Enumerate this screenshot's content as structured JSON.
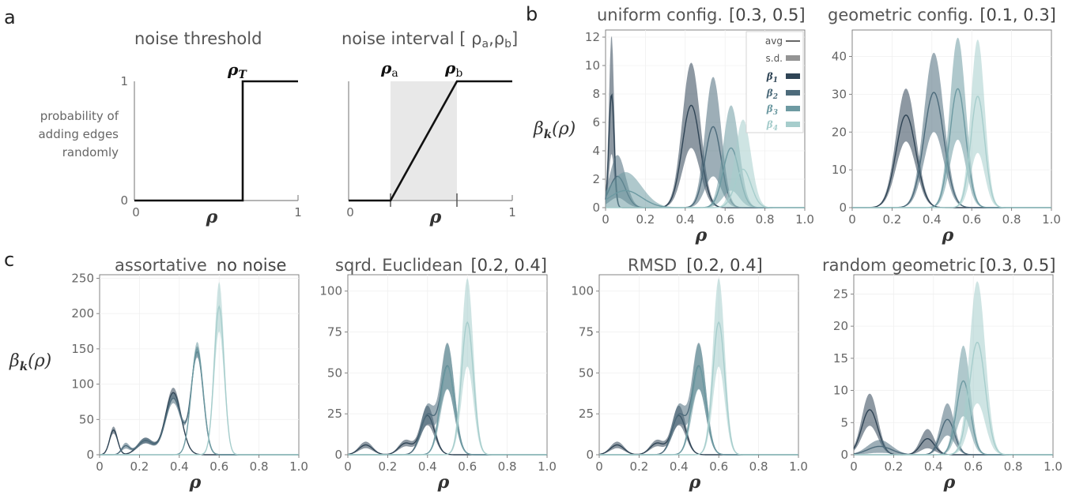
{
  "panel_labels": [
    "a",
    "b",
    "c"
  ],
  "panel_a": {
    "threshold": {
      "title": "noise threshold",
      "ylabel_lines": [
        "probability of",
        "adding edges",
        "randomly"
      ],
      "y_ticks": [
        "0",
        "1"
      ],
      "x_ticks": [
        "0",
        "1"
      ],
      "xlabel": "ρ",
      "marker_label": "ρ",
      "marker_sub": "T"
    },
    "interval": {
      "title": "noise interval [ ρ",
      "title_sub_a": "a",
      "title_mid": ",ρ",
      "title_sub_b": "b",
      "title_end": "]",
      "x_ticks": [
        "0",
        "1"
      ],
      "xlabel": "ρ",
      "label_a": "ρ",
      "label_a_sub": "a",
      "label_b": "ρ",
      "label_b_sub": "b"
    }
  },
  "colors": {
    "b1": "#2f4455",
    "b2": "#4d6b7b",
    "b3": "#6d9aa2",
    "b4": "#a6cdcc",
    "axis": "#888888",
    "shade": "#e6e6e6"
  },
  "legend": {
    "avg": "avg",
    "sd": "s.d.",
    "b1": "β",
    "b1_sub": "1",
    "b2": "β",
    "b2_sub": "2",
    "b3": "β",
    "b3_sub": "3",
    "b4": "β",
    "b4_sub": "4"
  },
  "ylabel_beta": "β",
  "ylabel_beta_sub": "k",
  "ylabel_beta_rest": "(ρ)",
  "chart_data": [
    {
      "id": "uniform",
      "type": "area",
      "title": "uniform config.",
      "title_extra": "[0.3, 0.5]",
      "xlabel": "ρ",
      "xlim": [
        0,
        1
      ],
      "ylim": [
        0,
        12.5
      ],
      "x_ticks": [
        "0",
        "0.2",
        "0.4",
        "0.6",
        "0.8",
        "1.0"
      ],
      "y_tick_values": [
        0,
        2,
        4,
        6,
        8,
        10,
        12
      ],
      "y_ticks": [
        "0",
        "2",
        "4",
        "6",
        "8",
        "10",
        "12"
      ],
      "series": [
        {
          "name": "β1",
          "components": [
            {
              "mu": 0.03,
              "sigma": 0.013,
              "amp": 8.0,
              "sd": 4.2
            },
            {
              "mu": 0.43,
              "sigma": 0.045,
              "amp": 7.2,
              "sd": 3.0
            }
          ]
        },
        {
          "name": "β2",
          "components": [
            {
              "mu": 0.06,
              "sigma": 0.04,
              "amp": 2.2,
              "sd": 1.5
            },
            {
              "mu": 0.54,
              "sigma": 0.04,
              "amp": 5.7,
              "sd": 3.5
            }
          ]
        },
        {
          "name": "β3",
          "components": [
            {
              "mu": 0.1,
              "sigma": 0.08,
              "amp": 1.2,
              "sd": 1.3
            },
            {
              "mu": 0.63,
              "sigma": 0.04,
              "amp": 4.2,
              "sd": 3.0
            }
          ]
        },
        {
          "name": "β4",
          "components": [
            {
              "mu": 0.69,
              "sigma": 0.04,
              "amp": 2.7,
              "sd": 3.5
            }
          ]
        }
      ]
    },
    {
      "id": "geometric",
      "type": "area",
      "title": "geometric config.",
      "title_extra": "[0.1, 0.3]",
      "xlabel": "ρ",
      "xlim": [
        0,
        1
      ],
      "ylim": [
        0,
        47
      ],
      "x_ticks": [
        "0",
        "0.2",
        "0.4",
        "0.6",
        "0.8",
        "1.0"
      ],
      "y_tick_values": [
        0,
        10,
        20,
        30,
        40
      ],
      "y_ticks": [
        "0",
        "10",
        "20",
        "30",
        "40"
      ],
      "series": [
        {
          "name": "β1",
          "components": [
            {
              "mu": 0.27,
              "sigma": 0.05,
              "amp": 24.5,
              "sd": 7.0
            }
          ]
        },
        {
          "name": "β2",
          "components": [
            {
              "mu": 0.41,
              "sigma": 0.05,
              "amp": 30.5,
              "sd": 10.5
            }
          ]
        },
        {
          "name": "β3",
          "components": [
            {
              "mu": 0.53,
              "sigma": 0.04,
              "amp": 31.5,
              "sd": 13.5
            }
          ]
        },
        {
          "name": "β4",
          "components": [
            {
              "mu": 0.63,
              "sigma": 0.035,
              "amp": 29.5,
              "sd": 15.0
            }
          ]
        }
      ]
    },
    {
      "id": "assortative",
      "type": "area",
      "title": "assortative",
      "title_extra": "no noise",
      "xlabel": "ρ",
      "xlim": [
        0,
        1
      ],
      "ylim": [
        0,
        255
      ],
      "x_ticks": [
        "0",
        "0.2",
        "0.4",
        "0.6",
        "0.8",
        "1.0"
      ],
      "y_tick_values": [
        0,
        50,
        100,
        150,
        200,
        250
      ],
      "y_ticks": [
        "0",
        "50",
        "100",
        "150",
        "200",
        "250"
      ],
      "series": [
        {
          "name": "β1",
          "components": [
            {
              "mu": 0.07,
              "sigma": 0.02,
              "amp": 35,
              "sd": 5
            },
            {
              "mu": 0.23,
              "sigma": 0.04,
              "amp": 20,
              "sd": 4
            },
            {
              "mu": 0.37,
              "sigma": 0.04,
              "amp": 88,
              "sd": 7
            }
          ]
        },
        {
          "name": "β2",
          "components": [
            {
              "mu": 0.13,
              "sigma": 0.02,
              "amp": 12,
              "sd": 4
            },
            {
              "mu": 0.23,
              "sigma": 0.04,
              "amp": 20,
              "sd": 4
            },
            {
              "mu": 0.37,
              "sigma": 0.04,
              "amp": 80,
              "sd": 7
            },
            {
              "mu": 0.49,
              "sigma": 0.03,
              "amp": 145,
              "sd": 8
            }
          ]
        },
        {
          "name": "β3",
          "components": [
            {
              "mu": 0.49,
              "sigma": 0.03,
              "amp": 150,
              "sd": 10
            }
          ]
        },
        {
          "name": "β4",
          "components": [
            {
              "mu": 0.6,
              "sigma": 0.025,
              "amp": 210,
              "sd": 35
            }
          ]
        }
      ]
    },
    {
      "id": "euclid",
      "type": "area",
      "title": "sqrd. Euclidean",
      "title_extra": "[0.2, 0.4]",
      "xlabel": "ρ",
      "xlim": [
        0,
        1
      ],
      "ylim": [
        0,
        110
      ],
      "x_ticks": [
        "0",
        "0.2",
        "0.4",
        "0.6",
        "0.8",
        "1.0"
      ],
      "y_tick_values": [
        0,
        25,
        50,
        75,
        100
      ],
      "y_ticks": [
        "0",
        "25",
        "50",
        "75",
        "100"
      ],
      "series": [
        {
          "name": "β1",
          "components": [
            {
              "mu": 0.09,
              "sigma": 0.035,
              "amp": 6,
              "sd": 2
            },
            {
              "mu": 0.29,
              "sigma": 0.035,
              "amp": 7,
              "sd": 2
            },
            {
              "mu": 0.4,
              "sigma": 0.035,
              "amp": 24,
              "sd": 6
            }
          ]
        },
        {
          "name": "β2",
          "components": [
            {
              "mu": 0.4,
              "sigma": 0.035,
              "amp": 24,
              "sd": 6
            },
            {
              "mu": 0.5,
              "sigma": 0.035,
              "amp": 54,
              "sd": 14
            }
          ]
        },
        {
          "name": "β3",
          "components": [
            {
              "mu": 0.5,
              "sigma": 0.035,
              "amp": 54,
              "sd": 14
            }
          ]
        },
        {
          "name": "β4",
          "components": [
            {
              "mu": 0.6,
              "sigma": 0.03,
              "amp": 81,
              "sd": 27
            }
          ]
        }
      ]
    },
    {
      "id": "rmsd",
      "type": "area",
      "title": "RMSD",
      "title_extra": "[0.2, 0.4]",
      "xlabel": "ρ",
      "xlim": [
        0,
        1
      ],
      "ylim": [
        0,
        110
      ],
      "x_ticks": [
        "0",
        "0.2",
        "0.4",
        "0.6",
        "0.8",
        "1.0"
      ],
      "y_tick_values": [
        0,
        25,
        50,
        75,
        100
      ],
      "y_ticks": [
        "0",
        "25",
        "50",
        "75",
        "100"
      ],
      "series": [
        {
          "name": "β1",
          "components": [
            {
              "mu": 0.09,
              "sigma": 0.035,
              "amp": 6,
              "sd": 2
            },
            {
              "mu": 0.29,
              "sigma": 0.035,
              "amp": 7,
              "sd": 2
            },
            {
              "mu": 0.4,
              "sigma": 0.035,
              "amp": 24,
              "sd": 6
            }
          ]
        },
        {
          "name": "β2",
          "components": [
            {
              "mu": 0.4,
              "sigma": 0.035,
              "amp": 24,
              "sd": 6
            },
            {
              "mu": 0.5,
              "sigma": 0.035,
              "amp": 54,
              "sd": 14
            }
          ]
        },
        {
          "name": "β3",
          "components": [
            {
              "mu": 0.5,
              "sigma": 0.035,
              "amp": 54,
              "sd": 14
            }
          ]
        },
        {
          "name": "β4",
          "components": [
            {
              "mu": 0.6,
              "sigma": 0.03,
              "amp": 81,
              "sd": 27
            }
          ]
        }
      ]
    },
    {
      "id": "rgg",
      "type": "area",
      "title": "random geometric",
      "title_extra": "[0.3, 0.5]",
      "xlabel": "ρ",
      "xlim": [
        0,
        1
      ],
      "ylim": [
        0,
        28
      ],
      "x_ticks": [
        "0",
        "0.2",
        "0.4",
        "0.6",
        "0.8",
        "1.0"
      ],
      "y_tick_values": [
        0,
        5,
        10,
        15,
        20,
        25
      ],
      "y_ticks": [
        "0",
        "5",
        "10",
        "15",
        "20",
        "25"
      ],
      "series": [
        {
          "name": "β1",
          "components": [
            {
              "mu": 0.08,
              "sigma": 0.04,
              "amp": 7,
              "sd": 2.5
            },
            {
              "mu": 0.37,
              "sigma": 0.035,
              "amp": 2.5,
              "sd": 1.5
            }
          ]
        },
        {
          "name": "β2",
          "components": [
            {
              "mu": 0.13,
              "sigma": 0.06,
              "amp": 1.3,
              "sd": 1
            },
            {
              "mu": 0.47,
              "sigma": 0.035,
              "amp": 5.5,
              "sd": 2.5
            }
          ]
        },
        {
          "name": "β3",
          "components": [
            {
              "mu": 0.55,
              "sigma": 0.035,
              "amp": 11.5,
              "sd": 5.5
            }
          ]
        },
        {
          "name": "β4",
          "components": [
            {
              "mu": 0.62,
              "sigma": 0.04,
              "amp": 17.5,
              "sd": 9.5
            }
          ]
        }
      ]
    }
  ]
}
